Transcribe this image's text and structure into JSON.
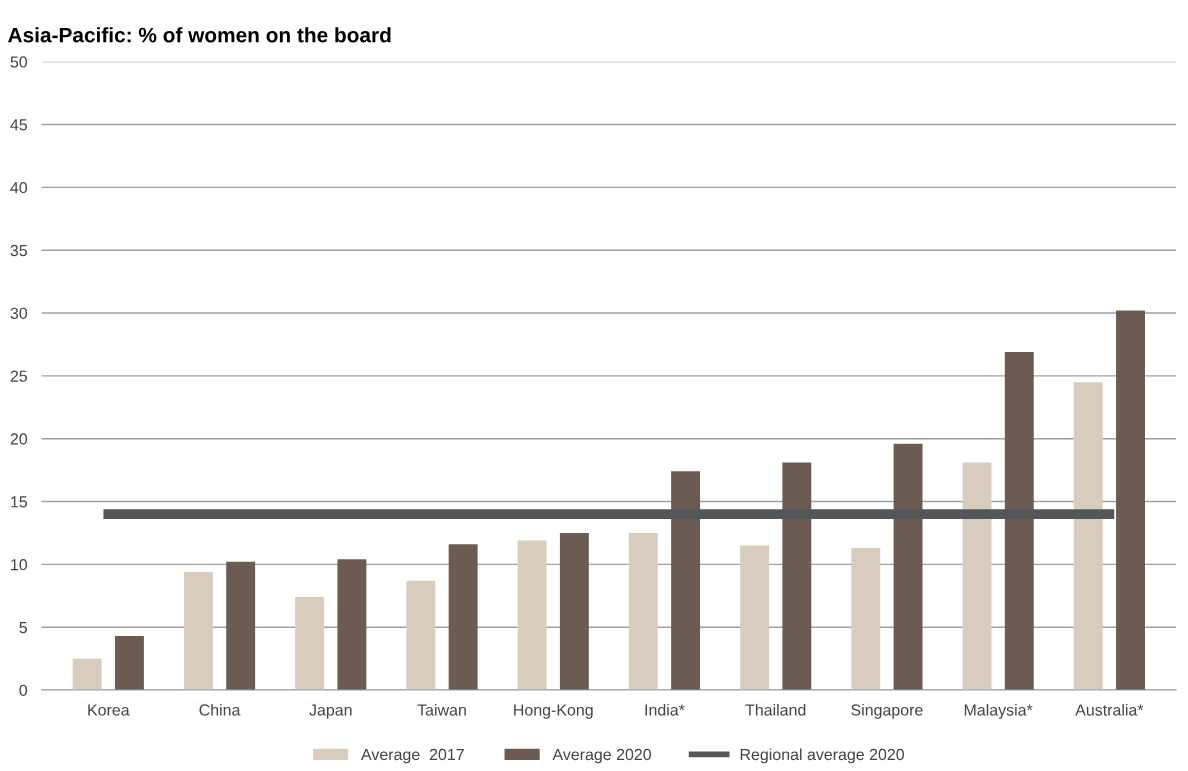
{
  "chart_data": {
    "type": "bar",
    "title": "Asia-Pacific: % of women on the board",
    "categories": [
      "Korea",
      "China",
      "Japan",
      "Taiwan",
      "Hong-Kong",
      "India*",
      "Thailand",
      "Singapore",
      "Malaysia*",
      "Australia*"
    ],
    "series": [
      {
        "name": "Average  2017",
        "color": "#d8ccbe",
        "values": [
          2.5,
          9.4,
          7.4,
          8.7,
          11.9,
          12.5,
          11.5,
          11.3,
          18.1,
          24.5
        ]
      },
      {
        "name": "Average 2020",
        "color": "#6b5b52",
        "values": [
          4.3,
          10.2,
          10.4,
          11.6,
          12.5,
          17.4,
          18.1,
          19.6,
          26.9,
          30.2
        ]
      },
      {
        "name": "Regional average 2020",
        "type": "line",
        "color": "#53575a",
        "values": [
          14.0,
          14.0,
          14.0,
          14.0,
          14.0,
          14.0,
          14.0,
          14.0,
          14.0,
          14.0
        ]
      }
    ],
    "ylim": [
      0,
      50
    ],
    "yticks": [
      0,
      5,
      10,
      15,
      20,
      25,
      30,
      35,
      40,
      45,
      50
    ],
    "grid": "y",
    "legend": "bottom"
  }
}
